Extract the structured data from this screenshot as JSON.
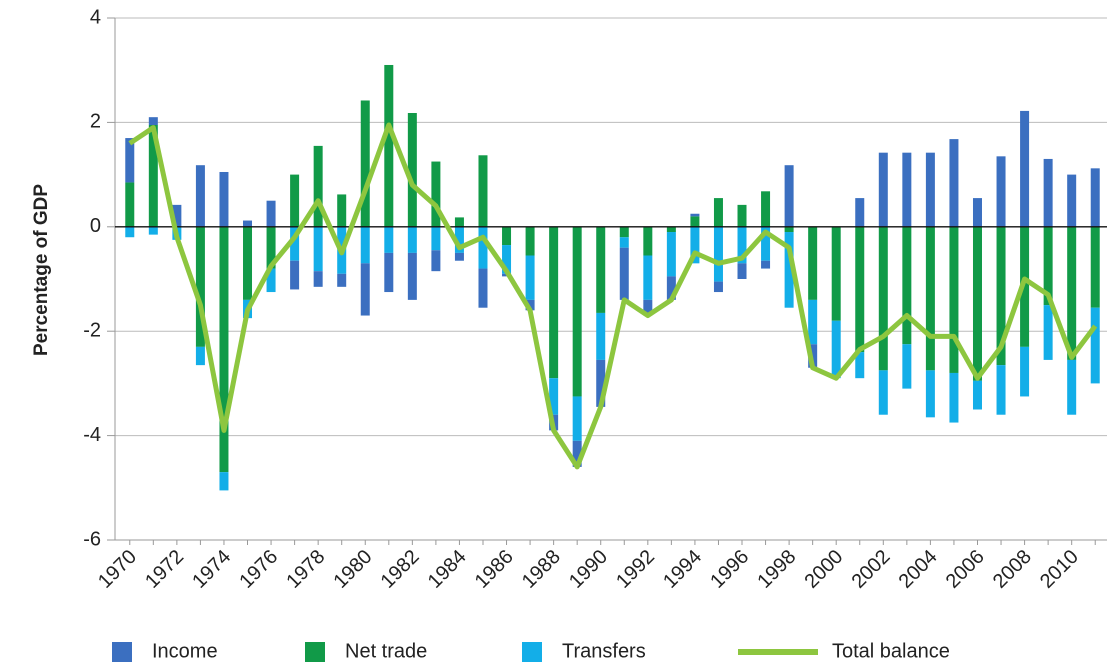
{
  "chart_data": {
    "type": "bar",
    "stacked": true,
    "ylabel": "Percentage of GDP",
    "categories": [
      "1970",
      null,
      "1972",
      null,
      "1974",
      null,
      "1976",
      null,
      "1978",
      null,
      "1980",
      null,
      "1982",
      null,
      "1984",
      null,
      "1986",
      null,
      "1988",
      null,
      "1990",
      null,
      "1992",
      null,
      "1994",
      null,
      "1996",
      null,
      "1998",
      null,
      "2000",
      null,
      "2002",
      null,
      "2004",
      null,
      "2006",
      null,
      "2008",
      null,
      "2010",
      null
    ],
    "series": [
      {
        "name": "Income",
        "color": "#3b6fc0",
        "values": [
          0.85,
          0.15,
          0.42,
          1.18,
          1.05,
          0.12,
          0.5,
          -0.55,
          -0.3,
          -0.25,
          -1.0,
          -0.75,
          -0.9,
          -0.4,
          -0.15,
          -0.75,
          -0.05,
          -0.2,
          -0.3,
          -0.5,
          -0.9,
          -1.0,
          -0.3,
          -0.45,
          0.05,
          -0.2,
          -0.3,
          -0.15,
          1.18,
          -0.45,
          0,
          0.55,
          1.42,
          1.42,
          1.42,
          1.68,
          0.55,
          1.35,
          2.22,
          1.3,
          1.0,
          1.12
        ]
      },
      {
        "name": "Net trade",
        "color": "#119a48",
        "values": [
          0.85,
          1.95,
          0,
          -2.3,
          -4.7,
          -1.4,
          -0.8,
          1.0,
          1.55,
          0.62,
          2.42,
          3.1,
          2.18,
          1.25,
          0.18,
          1.37,
          -0.35,
          -0.55,
          -2.9,
          -3.25,
          -1.65,
          -0.2,
          -0.55,
          -0.1,
          0.2,
          0.55,
          0.42,
          0.68,
          -0.1,
          -1.4,
          -1.8,
          -2.4,
          -2.75,
          -2.25,
          -2.75,
          -2.8,
          -2.95,
          -2.65,
          -2.3,
          -1.5,
          -2.55,
          -1.55
        ]
      },
      {
        "name": "Transfers",
        "color": "#13aee8",
        "values": [
          -0.2,
          -0.15,
          -0.25,
          -0.35,
          -0.35,
          -0.35,
          -0.45,
          -0.65,
          -0.85,
          -0.9,
          -0.7,
          -0.5,
          -0.5,
          -0.45,
          -0.5,
          -0.8,
          -0.55,
          -0.85,
          -0.7,
          -0.85,
          -0.9,
          -0.2,
          -0.85,
          -0.85,
          -0.7,
          -1.05,
          -0.7,
          -0.65,
          -1.45,
          -0.85,
          -1.1,
          -0.5,
          -0.85,
          -0.85,
          -0.9,
          -0.95,
          -0.55,
          -0.95,
          -0.95,
          -1.05,
          -1.05,
          -1.45
        ]
      },
      {
        "name": "Total balance",
        "color": "#8dc63f",
        "type": "line",
        "values": [
          1.6,
          1.9,
          -0.2,
          -1.5,
          -3.9,
          -1.6,
          -0.75,
          -0.2,
          0.5,
          -0.5,
          0.7,
          1.95,
          0.8,
          0.4,
          -0.4,
          -0.2,
          -0.85,
          -1.6,
          -3.9,
          -4.6,
          -3.45,
          -1.4,
          -1.7,
          -1.4,
          -0.5,
          -0.7,
          -0.6,
          -0.1,
          -0.4,
          -2.7,
          -2.9,
          -2.35,
          -2.1,
          -1.7,
          -2.1,
          -2.1,
          -2.9,
          -2.3,
          -1.0,
          -1.3,
          -2.5,
          -1.9
        ]
      }
    ],
    "ylim": [
      -6,
      4
    ],
    "yticks": [
      -6,
      -4,
      -2,
      0,
      2,
      4
    ],
    "grid": true
  }
}
